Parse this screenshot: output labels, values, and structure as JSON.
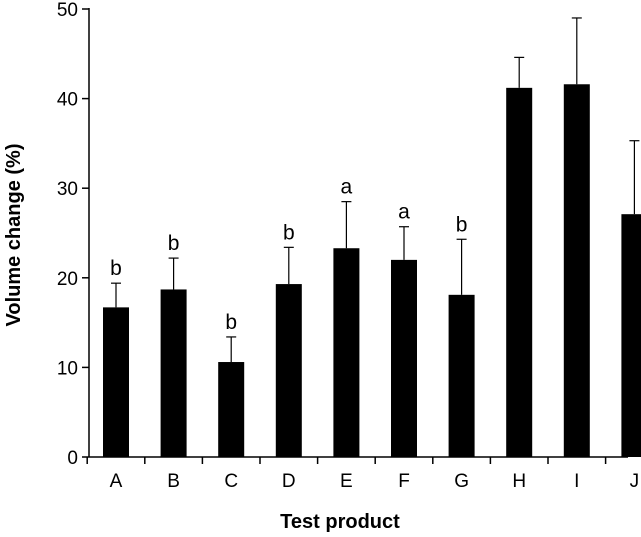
{
  "chart_data": {
    "type": "bar",
    "title": "",
    "xlabel": "Test product",
    "ylabel": "Volume change (%)",
    "ylim": [
      0,
      50
    ],
    "yticks": [
      0,
      10,
      20,
      30,
      40,
      50
    ],
    "categories": [
      "A",
      "B",
      "C",
      "D",
      "E",
      "F",
      "G",
      "H",
      "I",
      "J"
    ],
    "values": [
      16.7,
      18.7,
      10.6,
      19.3,
      23.3,
      22.0,
      18.1,
      41.2,
      41.6,
      27.1
    ],
    "errors": [
      2.7,
      3.5,
      2.8,
      4.1,
      5.2,
      3.7,
      6.2,
      3.4,
      7.4,
      8.2
    ],
    "significance": [
      "b",
      "b",
      "b",
      "b",
      "a",
      "a",
      "b",
      "",
      "",
      ""
    ],
    "bar_color": "#000000",
    "grid": false,
    "legend": "none"
  }
}
